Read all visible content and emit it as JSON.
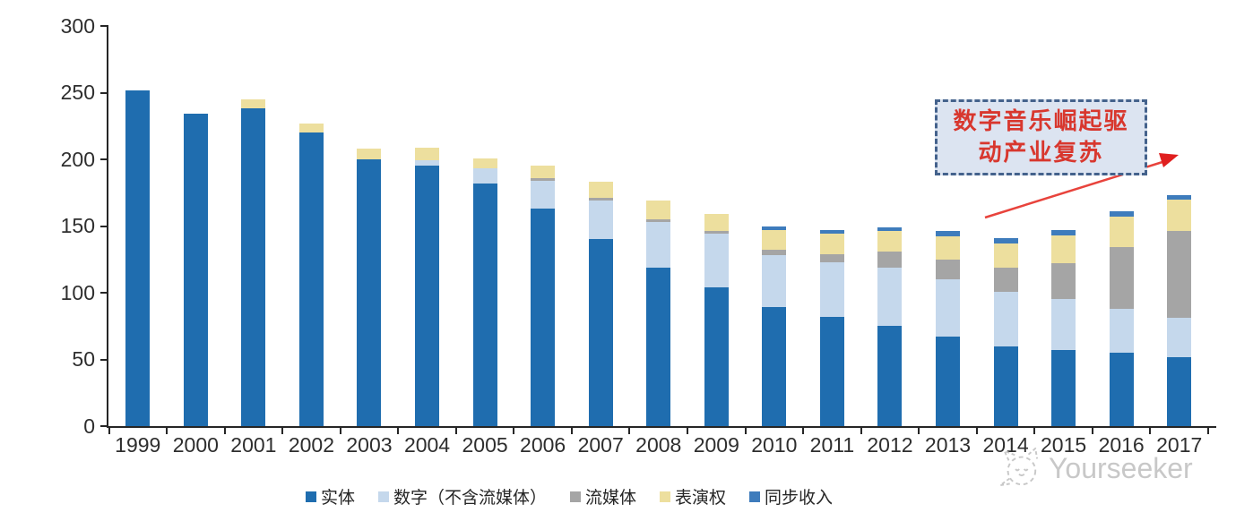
{
  "watermark": {
    "brand": "Yourseeker"
  },
  "annotation": {
    "line1": "数字音乐崛起驱",
    "line2": "动产业复苏"
  },
  "chart_data": {
    "type": "bar",
    "stacked": true,
    "title": "",
    "xlabel": "",
    "ylabel": "",
    "grid": false,
    "legend_position": "bottom",
    "ylim": [
      0,
      300
    ],
    "yticks": [
      0,
      50,
      100,
      150,
      200,
      250,
      300
    ],
    "categories": [
      "1999",
      "2000",
      "2001",
      "2002",
      "2003",
      "2004",
      "2005",
      "2006",
      "2007",
      "2008",
      "2009",
      "2010",
      "2011",
      "2012",
      "2013",
      "2014",
      "2015",
      "2016",
      "2017"
    ],
    "series": [
      {
        "name": "实体",
        "color": "#1f6daf",
        "values": [
          252,
          234,
          238,
          220,
          200,
          195,
          182,
          163,
          140,
          119,
          104,
          89,
          82,
          75,
          67,
          60,
          57,
          55,
          52
        ]
      },
      {
        "name": "数字（不含流媒体）",
        "color": "#c5d8ec",
        "values": [
          0,
          0,
          0,
          0,
          0,
          4,
          11,
          21,
          29,
          34,
          40,
          39,
          41,
          44,
          43,
          41,
          38,
          33,
          29
        ]
      },
      {
        "name": "流媒体",
        "color": "#a5a5a5",
        "values": [
          0,
          0,
          0,
          0,
          0,
          0,
          0,
          2,
          2,
          2,
          2,
          4,
          6,
          12,
          15,
          18,
          27,
          46,
          65
        ]
      },
      {
        "name": "表演权",
        "color": "#eddf9e",
        "values": [
          0,
          0,
          7,
          7,
          8,
          10,
          8,
          9,
          12,
          14,
          13,
          15,
          15,
          15,
          17,
          18,
          21,
          23,
          24
        ]
      },
      {
        "name": "同步收入",
        "color": "#3e7cbc",
        "values": [
          0,
          0,
          0,
          0,
          0,
          0,
          0,
          0,
          0,
          0,
          0,
          3,
          3,
          3,
          4,
          4,
          4,
          4,
          3
        ]
      }
    ]
  }
}
